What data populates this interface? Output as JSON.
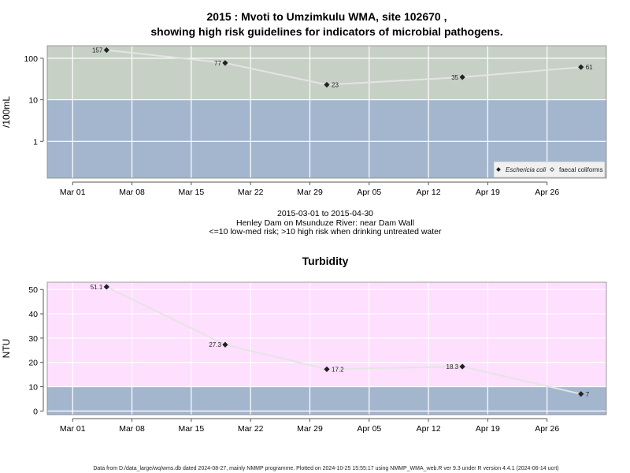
{
  "chart_data": [
    {
      "type": "line",
      "title_line1": "2015 : Mvoti to Umzimkulu WMA, site 102670 ,",
      "title_line2": "showing high risk guidelines for indicators of microbial pathogens.",
      "ylabel": "/100mL",
      "yscale": "log",
      "ylim": [
        0.13,
        200
      ],
      "yticks": [
        {
          "value": 1,
          "label": "1"
        },
        {
          "value": 10,
          "label": "10"
        },
        {
          "value": 100,
          "label": "100"
        }
      ],
      "xlim": [
        "2015-02-26",
        "2015-05-03"
      ],
      "xticks": [
        {
          "date": "2015-03-01",
          "label": "Mar 01"
        },
        {
          "date": "2015-03-08",
          "label": "Mar 08"
        },
        {
          "date": "2015-03-15",
          "label": "Mar 15"
        },
        {
          "date": "2015-03-22",
          "label": "Mar 22"
        },
        {
          "date": "2015-03-29",
          "label": "Mar 29"
        },
        {
          "date": "2015-04-05",
          "label": "Apr 05"
        },
        {
          "date": "2015-04-12",
          "label": "Apr 12"
        },
        {
          "date": "2015-04-19",
          "label": "Apr 19"
        },
        {
          "date": "2015-04-26",
          "label": "Apr 26"
        }
      ],
      "bands": [
        {
          "from": 0.13,
          "to": 10,
          "color": "#a4b6ce"
        },
        {
          "from": 10,
          "to": 200,
          "color": "#c6d0c5"
        }
      ],
      "series": [
        {
          "name": "Eschericia coli",
          "points": [
            {
              "date": "2015-03-05",
              "value": 157,
              "label": "157",
              "label_side": "left"
            },
            {
              "date": "2015-03-19",
              "value": 77,
              "label": "77",
              "label_side": "left"
            },
            {
              "date": "2015-03-31",
              "value": 23,
              "label": "23",
              "label_side": "right"
            },
            {
              "date": "2015-04-16",
              "value": 35,
              "label": "35",
              "label_side": "left"
            },
            {
              "date": "2015-04-30",
              "value": 61,
              "label": "61",
              "label_side": "right"
            }
          ]
        }
      ],
      "legend": {
        "placement": "bottom-right",
        "entries": [
          {
            "label": "Eschericia coli",
            "marker": "filled-diamond"
          },
          {
            "label": "faecal coliforms",
            "marker": "open-diamond"
          }
        ]
      },
      "caption_lines": [
        "2015-03-01 to 2015-04-30",
        "Henley Dam on Msunduze River: near Dam Wall",
        "<=10 low-med risk; >10 high risk when drinking untreated water"
      ]
    },
    {
      "type": "line",
      "title": "Turbidity",
      "ylabel": "NTU",
      "ylim": [
        -1.5,
        53
      ],
      "yticks": [
        {
          "value": 0,
          "label": "0"
        },
        {
          "value": 10,
          "label": "10"
        },
        {
          "value": 20,
          "label": "20"
        },
        {
          "value": 30,
          "label": "30"
        },
        {
          "value": 40,
          "label": "40"
        },
        {
          "value": 50,
          "label": "50"
        }
      ],
      "xlim": [
        "2015-02-26",
        "2015-05-03"
      ],
      "xticks": [
        {
          "date": "2015-03-01",
          "label": "Mar 01"
        },
        {
          "date": "2015-03-08",
          "label": "Mar 08"
        },
        {
          "date": "2015-03-15",
          "label": "Mar 15"
        },
        {
          "date": "2015-03-22",
          "label": "Mar 22"
        },
        {
          "date": "2015-03-29",
          "label": "Mar 29"
        },
        {
          "date": "2015-04-05",
          "label": "Apr 05"
        },
        {
          "date": "2015-04-12",
          "label": "Apr 12"
        },
        {
          "date": "2015-04-19",
          "label": "Apr 19"
        },
        {
          "date": "2015-04-26",
          "label": "Apr 26"
        }
      ],
      "bands": [
        {
          "from": -1.5,
          "to": 10,
          "color": "#a4b6ce"
        },
        {
          "from": 10,
          "to": 53,
          "color": "#fedffe"
        }
      ],
      "series": [
        {
          "points": [
            {
              "date": "2015-03-05",
              "value": 51.1,
              "label": "51.1",
              "label_side": "left"
            },
            {
              "date": "2015-03-19",
              "value": 27.3,
              "label": "27.3",
              "label_side": "left"
            },
            {
              "date": "2015-03-31",
              "value": 17.2,
              "label": "17.2",
              "label_side": "right"
            },
            {
              "date": "2015-04-16",
              "value": 18.3,
              "label": "18.3",
              "label_side": "left"
            },
            {
              "date": "2015-04-30",
              "value": 7,
              "label": "7",
              "label_side": "right"
            }
          ]
        }
      ]
    }
  ],
  "footer": "Data from D:/data_large/wq/wms.db dated 2024-08-27, mainly NMMP programme. Plotted on 2024-10-25 15:55:17 using NMMP_WMA_web.R ver 9.3 under R version 4.4.1 (2024-06-14 ucrt)",
  "colors": {
    "grid": "#ffffff",
    "line": "#e4e4e4",
    "marker": "#222222",
    "axis": "#555555",
    "frame": "#888888"
  }
}
